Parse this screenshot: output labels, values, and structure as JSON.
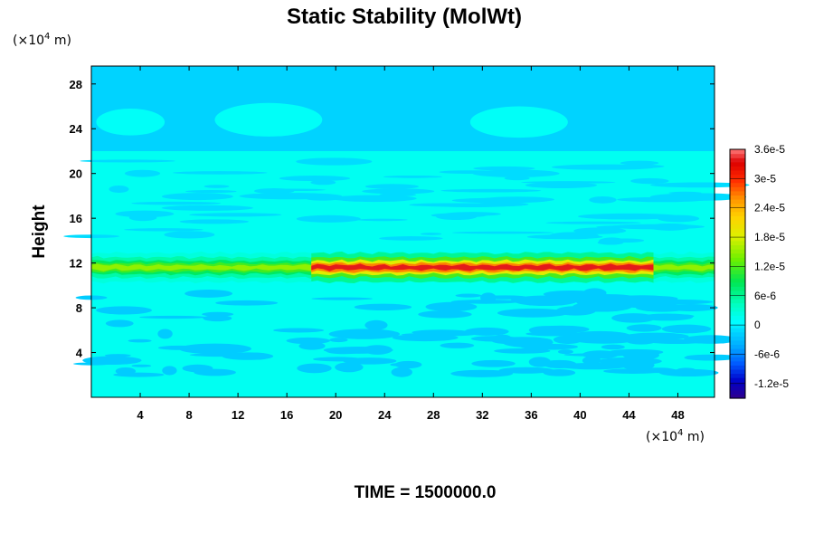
{
  "chart_data": {
    "type": "heatmap",
    "title": "Static Stability (MolWt)",
    "ylabel": "Height",
    "xlabel": "",
    "x_unit_prefix": "(×10",
    "x_unit_exp": "4",
    "x_unit_suffix": " m)",
    "y_unit_prefix": "(×10",
    "y_unit_exp": "4",
    "y_unit_suffix": " m)",
    "xlim": [
      0,
      51
    ],
    "ylim": [
      0,
      29.6
    ],
    "x_ticks": [
      4,
      8,
      12,
      16,
      20,
      24,
      28,
      32,
      36,
      40,
      44,
      48
    ],
    "x_tick_labels": [
      "4",
      "8",
      "12",
      "16",
      "20",
      "24",
      "28",
      "32",
      "36",
      "40",
      "44",
      "48"
    ],
    "y_ticks": [
      4,
      8,
      12,
      16,
      20,
      24,
      28
    ],
    "y_tick_labels": [
      "4",
      "8",
      "12",
      "16",
      "20",
      "24",
      "28"
    ],
    "colorbar": {
      "min": -1.5e-05,
      "max": 3.6e-05,
      "ticks": [
        3.6e-05,
        3e-05,
        2.4e-05,
        1.8e-05,
        1.2e-05,
        6e-06,
        0,
        -6e-06,
        -1.2e-05
      ],
      "tick_labels": [
        "3.6e-5",
        "3e-5",
        "2.4e-5",
        "1.8e-5",
        "1.2e-5",
        "6e-6",
        "0",
        "-6e-6",
        "-1.2e-5"
      ]
    },
    "field": {
      "background_value": 1.5e-06,
      "upper_layer": {
        "y_range": [
          22,
          29.6
        ],
        "value": -1.5e-06
      },
      "blobs": [
        {
          "x_center": 3.2,
          "y_center": 24.6,
          "x_halfwidth": 2.8,
          "y_halfwidth": 1.2,
          "value": 1.2e-06
        },
        {
          "x_center": 14.5,
          "y_center": 24.8,
          "x_halfwidth": 4.4,
          "y_halfwidth": 1.5,
          "value": 1.2e-06
        },
        {
          "x_center": 35.0,
          "y_center": 24.6,
          "x_halfwidth": 4.0,
          "y_halfwidth": 1.4,
          "value": 1.2e-06
        }
      ],
      "tropopause_band": {
        "y_center": 11.6,
        "thickness": 1.0,
        "segments": [
          {
            "x_range": [
              0,
              18
            ],
            "peak_value": 1.5e-05
          },
          {
            "x_range": [
              18,
              46
            ],
            "peak_value": 3.4e-05
          },
          {
            "x_range": [
              46,
              51
            ],
            "peak_value": 1.5e-05
          }
        ]
      },
      "lower_streaks_value": -2e-06
    },
    "grid": false,
    "legend": "colorbar-right"
  },
  "footer": {
    "time_label": "TIME = 1500000.0"
  }
}
